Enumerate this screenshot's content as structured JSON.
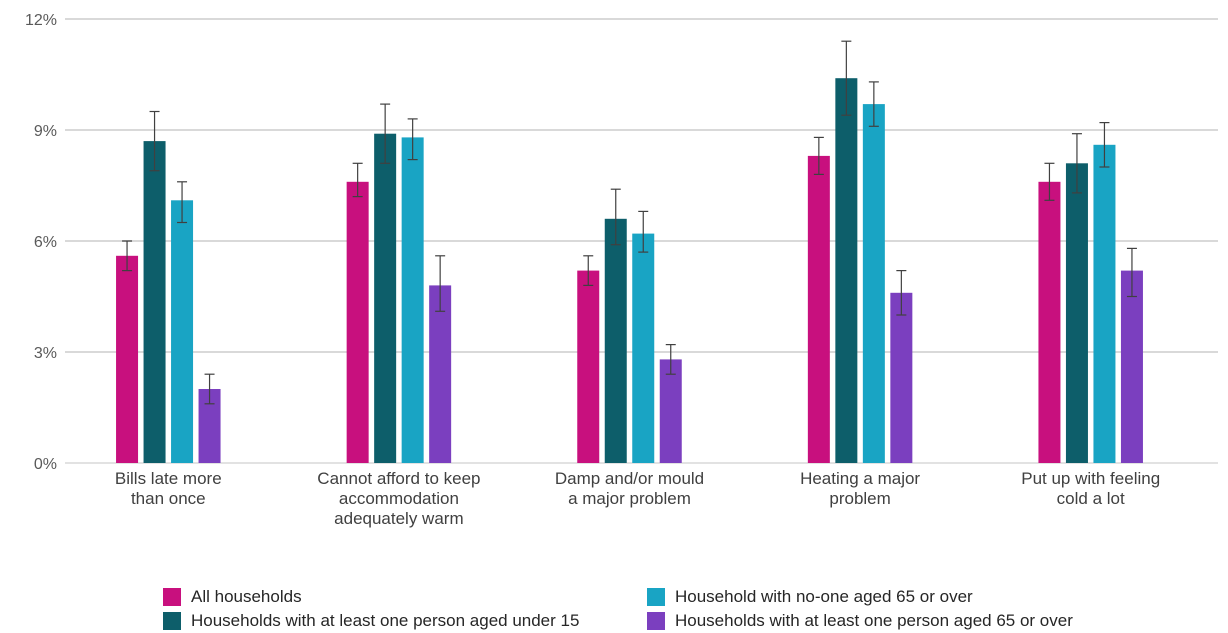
{
  "chart_data": {
    "type": "bar",
    "title": "",
    "xlabel": "",
    "ylabel": "",
    "ylim": [
      0,
      12
    ],
    "yticks": [
      0,
      3,
      6,
      9,
      12
    ],
    "ytick_labels": [
      "0%",
      "3%",
      "6%",
      "9%",
      "12%"
    ],
    "grid": true,
    "legend_position": "bottom",
    "categories": [
      [
        "Bills late more",
        "than once"
      ],
      [
        "Cannot afford to keep",
        "accommodation",
        "adequately warm"
      ],
      [
        "Damp and/or mould",
        "a major problem"
      ],
      [
        "Heating a major",
        "problem"
      ],
      [
        "Put up with feeling",
        "cold a lot"
      ]
    ],
    "series": [
      {
        "name": "All households",
        "color": "#c8107e",
        "values": [
          5.6,
          7.6,
          5.2,
          8.3,
          7.6
        ],
        "error_low": [
          5.2,
          7.2,
          4.8,
          7.8,
          7.1
        ],
        "error_high": [
          6.0,
          8.1,
          5.6,
          8.8,
          8.1
        ]
      },
      {
        "name": "Households with at least one person aged under 15",
        "color": "#0d5e6a",
        "values": [
          8.7,
          8.9,
          6.6,
          10.4,
          8.1
        ],
        "error_low": [
          7.9,
          8.1,
          5.9,
          9.4,
          7.3
        ],
        "error_high": [
          9.5,
          9.7,
          7.4,
          11.4,
          8.9
        ]
      },
      {
        "name": "Household with no-one aged 65 or over",
        "color": "#19a4c4",
        "values": [
          7.1,
          8.8,
          6.2,
          9.7,
          8.6
        ],
        "error_low": [
          6.5,
          8.2,
          5.7,
          9.1,
          8.0
        ],
        "error_high": [
          7.6,
          9.3,
          6.8,
          10.3,
          9.2
        ]
      },
      {
        "name": "Households with at least one person aged 65 or over",
        "color": "#7b3fbf",
        "values": [
          2.0,
          4.8,
          2.8,
          4.6,
          5.2
        ],
        "error_low": [
          1.6,
          4.1,
          2.4,
          4.0,
          4.5
        ],
        "error_high": [
          2.4,
          5.6,
          3.2,
          5.2,
          5.8
        ]
      }
    ]
  },
  "legend": [
    {
      "name": "All households",
      "color": "#c8107e"
    },
    {
      "name": "Households with at least one person aged under 15",
      "color": "#0d5e6a"
    },
    {
      "name": "Household with no-one aged 65 or over",
      "color": "#19a4c4"
    },
    {
      "name": "Households with at least one person aged 65 or over",
      "color": "#7b3fbf"
    }
  ]
}
